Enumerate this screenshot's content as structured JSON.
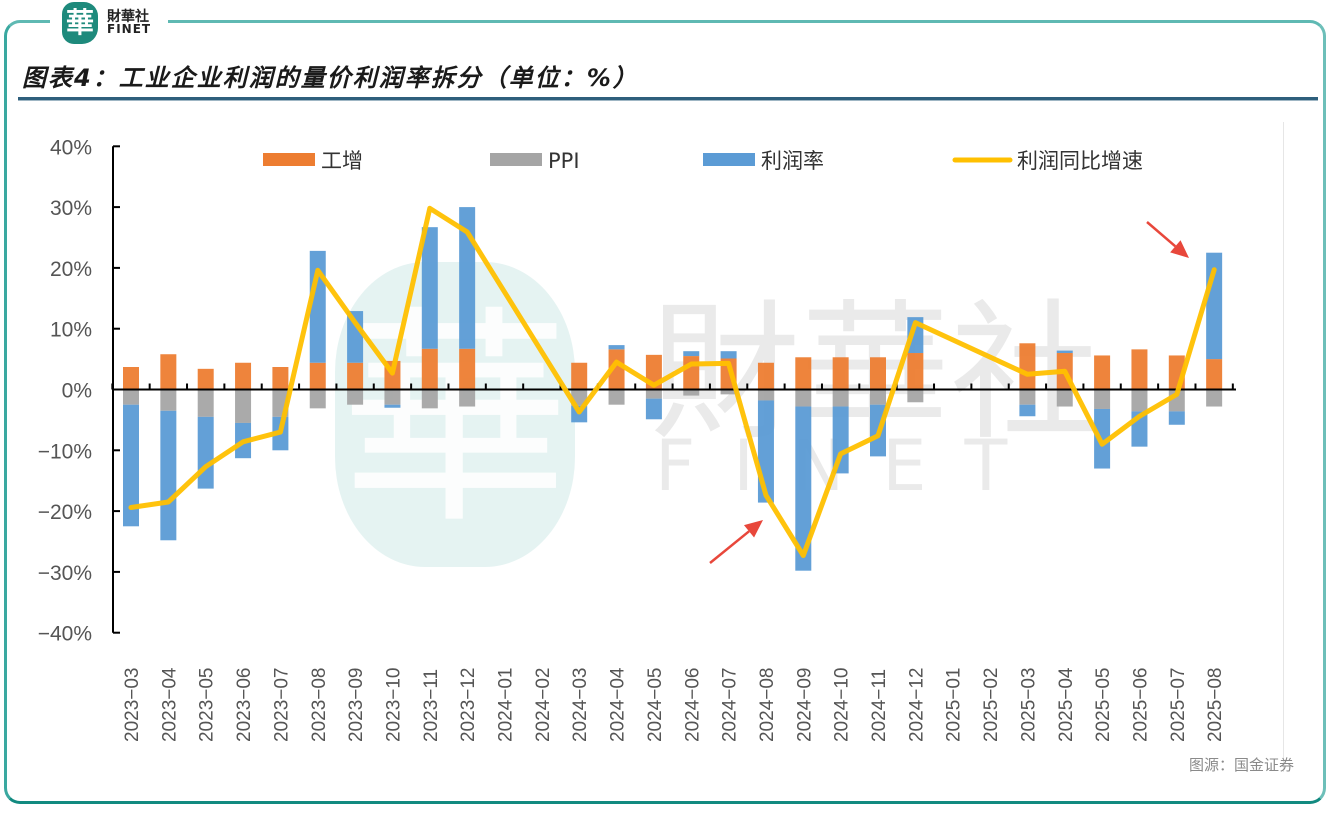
{
  "header": {
    "logo_mark": "華",
    "logo_cn": "財華社",
    "logo_en": "FINET",
    "title": "图表4：工业企业利润的量价利润率拆分（单位：%）"
  },
  "watermark": {
    "cn": "財華社",
    "en": "FINET"
  },
  "source": "图源：国金证券",
  "colors": {
    "industrial_growth": "#ED7D31",
    "ppi": "#A5A5A5",
    "profit_margin": "#5B9BD5",
    "profit_yoy": "#FFC000",
    "frame": "#1a8c85",
    "arrow": "#E8473B"
  },
  "chart_data": {
    "type": "bar",
    "stacked": true,
    "title": "图表4：工业企业利润的量价利润率拆分（单位：%）",
    "xlabel": "",
    "ylabel": "",
    "ylim": [
      -40,
      40
    ],
    "yticks": [
      "40%",
      "30%",
      "20%",
      "10%",
      "0%",
      "−10%",
      "−20%",
      "−30%",
      "−40%"
    ],
    "ytick_values": [
      40,
      30,
      20,
      10,
      0,
      -10,
      -20,
      -30,
      -40
    ],
    "grid": false,
    "legend_position": "top",
    "categories": [
      "2023-03",
      "2023-04",
      "2023-05",
      "2023-06",
      "2023-07",
      "2023-08",
      "2023-09",
      "2023-10",
      "2023-11",
      "2023-12",
      "2024-01",
      "2024-02",
      "2024-03",
      "2024-04",
      "2024-05",
      "2024-06",
      "2024-07",
      "2024-08",
      "2024-09",
      "2024-10",
      "2024-11",
      "2024-12",
      "2025-01",
      "2025-02",
      "2025-03",
      "2025-04",
      "2025-05",
      "2025-06",
      "2025-07",
      "2025-08"
    ],
    "tick_labels": [
      "2023−03",
      "2023−04",
      "2023−05",
      "2023−06",
      "2023−07",
      "2023−08",
      "2023−09",
      "2023−10",
      "2023−11",
      "2023−12",
      "2024−01",
      "2024−02",
      "2024−03",
      "2024−04",
      "2024−05",
      "2024−06",
      "2024−07",
      "2024−08",
      "2024−09",
      "2024−10",
      "2024−11",
      "2024−12",
      "2025−01",
      "2025−02",
      "2025−03",
      "2025−04",
      "2025−05",
      "2025−06",
      "2025−07",
      "2025−08"
    ],
    "series": [
      {
        "name": "工增",
        "type": "bar",
        "color": "#ED7D31",
        "values": [
          3.7,
          5.8,
          3.4,
          4.4,
          3.7,
          4.4,
          4.4,
          4.7,
          6.7,
          6.7,
          null,
          null,
          4.4,
          6.6,
          5.7,
          5.5,
          5.1,
          4.4,
          5.3,
          5.3,
          5.3,
          6.0,
          null,
          null,
          7.6,
          6.0,
          5.6,
          6.6,
          5.6,
          5.0
        ]
      },
      {
        "name": "PPI",
        "type": "bar",
        "color": "#A5A5A5",
        "values": [
          -2.5,
          -3.5,
          -4.5,
          -5.5,
          -4.5,
          -3.1,
          -2.5,
          -2.5,
          -3.1,
          -2.8,
          null,
          null,
          -2.7,
          -2.5,
          -1.5,
          -1.0,
          -0.8,
          -1.8,
          -2.8,
          -2.8,
          -2.5,
          -2.1,
          null,
          null,
          -2.5,
          -2.8,
          -3.2,
          -3.6,
          -3.6,
          -2.8
        ]
      },
      {
        "name": "利润率",
        "type": "bar",
        "color": "#5B9BD5",
        "values": [
          -20.0,
          -21.3,
          -11.8,
          -5.8,
          -5.5,
          18.4,
          8.5,
          -0.5,
          20.0,
          23.3,
          null,
          null,
          -2.7,
          0.7,
          -3.4,
          0.8,
          1.2,
          -16.8,
          -27.0,
          -11.0,
          -8.5,
          5.9,
          null,
          null,
          -1.9,
          0.4,
          -9.8,
          -5.8,
          -2.2,
          17.5
        ]
      },
      {
        "name": "利润同比增速",
        "type": "line",
        "color": "#FFC000",
        "values": [
          -19.4,
          -18.5,
          -12.7,
          -8.6,
          -7.0,
          19.6,
          11.0,
          2.7,
          29.8,
          25.9,
          null,
          null,
          -3.7,
          4.5,
          0.7,
          4.2,
          4.3,
          -17.4,
          -27.3,
          -10.6,
          -7.6,
          11.0,
          null,
          null,
          2.5,
          3.0,
          -9.0,
          -4.4,
          -0.8,
          19.7
        ]
      }
    ],
    "annotations": [
      {
        "type": "arrow",
        "near": "2024-08",
        "direction": "up-right",
        "color": "#E8473B"
      },
      {
        "type": "arrow",
        "near": "2025-08",
        "direction": "down-right",
        "color": "#E8473B"
      }
    ]
  },
  "legend": [
    {
      "label": "工增",
      "swatch": "bar",
      "color": "#ED7D31"
    },
    {
      "label": "PPI",
      "swatch": "bar",
      "color": "#A5A5A5"
    },
    {
      "label": "利润率",
      "swatch": "bar",
      "color": "#5B9BD5"
    },
    {
      "label": "利润同比增速",
      "swatch": "line",
      "color": "#FFC000"
    }
  ]
}
